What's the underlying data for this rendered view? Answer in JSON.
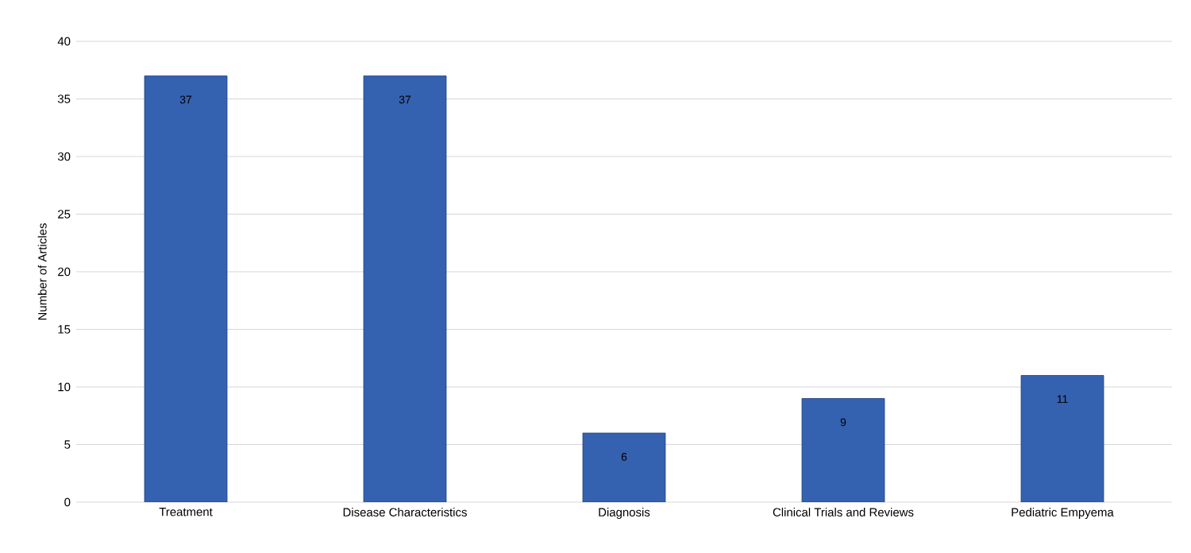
{
  "chart_data": {
    "type": "bar",
    "ylabel": "Number of Articles",
    "categories": [
      "Treatment",
      "Disease Characteristics",
      "Diagnosis",
      "Clinical Trials and Reviews",
      "Pediatric Empyema"
    ],
    "values": [
      37,
      37,
      6,
      9,
      11
    ],
    "color": "#3461b0",
    "ylim": [
      0,
      40
    ],
    "yticks": [
      0,
      5,
      10,
      15,
      20,
      25,
      30,
      35,
      40
    ],
    "grid": "y",
    "data_labels": true
  }
}
